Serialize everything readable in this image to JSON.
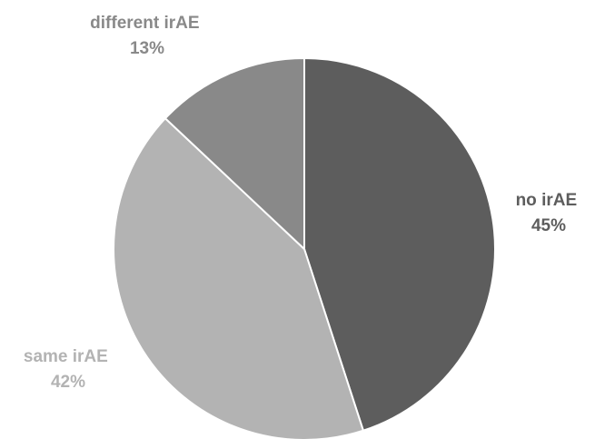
{
  "chart_data": {
    "type": "pie",
    "title": "",
    "slices": [
      {
        "label": "no irAE",
        "value": 45,
        "value_label": "45%",
        "color": "#5d5d5d",
        "label_color": "#5d5d5d"
      },
      {
        "label": "same irAE",
        "value": 42,
        "value_label": "42%",
        "color": "#b3b3b3",
        "label_color": "#b3b3b3"
      },
      {
        "label": "different irAE",
        "value": 13,
        "value_label": "13%",
        "color": "#898989",
        "label_color": "#898989"
      }
    ],
    "start": "12 o'clock",
    "direction": "clockwise",
    "slice_border_color": "#ffffff",
    "legend": "none"
  }
}
